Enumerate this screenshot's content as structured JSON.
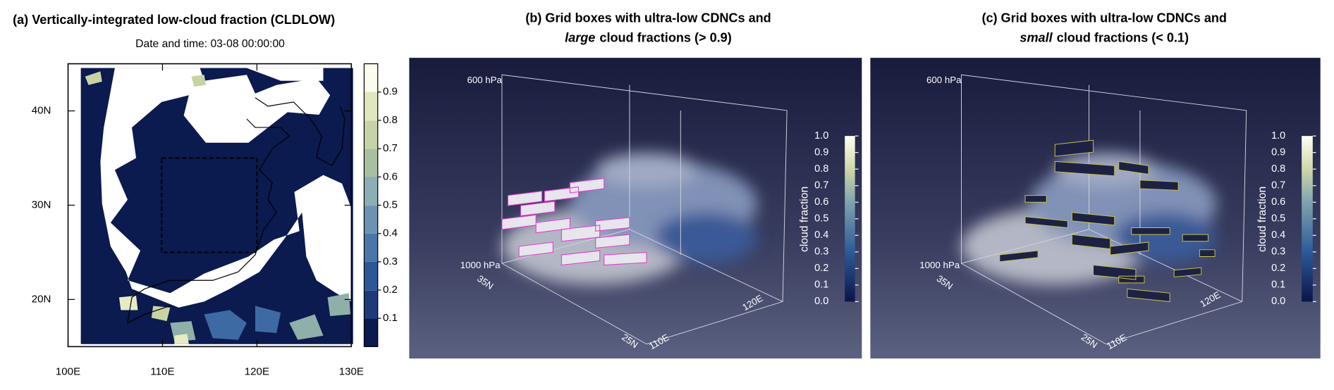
{
  "panels": [
    {
      "title": "(a) Vertically-integrated low-cloud fraction (CLDLOW)",
      "subtitle": "Date and time: 03-08 00:00:00",
      "xlim": [
        100,
        130
      ],
      "ylim": [
        15,
        45
      ],
      "xticks": [
        {
          "value": 100,
          "label": "100E"
        },
        {
          "value": 110,
          "label": "110E"
        },
        {
          "value": 120,
          "label": "120E"
        },
        {
          "value": 130,
          "label": "130E"
        }
      ],
      "yticks": [
        {
          "value": 20,
          "label": "20N"
        },
        {
          "value": 30,
          "label": "30N"
        },
        {
          "value": 40,
          "label": "40N"
        }
      ],
      "colorbar_lim": [
        0,
        1
      ],
      "colorbar_ticks": [
        0.1,
        0.2,
        0.3,
        0.4,
        0.5,
        0.6,
        0.7,
        0.8,
        0.9
      ]
    },
    {
      "title_line1": "(b) Grid boxes with ultra-low CDNCs and",
      "title_line2_italic": "large",
      "title_line2_rest": "cloud fractions (> 0.9)",
      "axis_labels": [
        "600 hPa",
        "1000 hPa",
        "35N",
        "25N",
        "110E",
        "120E"
      ],
      "colorbar_label": "cloud fraction",
      "colorbar_lim": [
        0,
        1
      ],
      "colorbar_ticks": [
        {
          "value": 0,
          "label": "0.0"
        },
        0.1,
        0.2,
        0.3,
        0.4,
        0.5,
        0.6,
        0.7,
        0.8,
        0.9,
        {
          "value": 1,
          "label": "1.0"
        }
      ]
    },
    {
      "title_line1": "(c) Grid boxes with ultra-low CDNCs and",
      "title_line2_italic": "small",
      "title_line2_rest": "cloud fractions (< 0.1)",
      "axis_labels": [
        "600 hPa",
        "1000 hPa",
        "35N",
        "25N",
        "110E",
        "120E"
      ],
      "colorbar_label": "cloud fraction",
      "colorbar_lim": [
        0,
        1
      ],
      "colorbar_ticks": [
        {
          "value": 0,
          "label": "0.0"
        },
        0.1,
        0.2,
        0.3,
        0.4,
        0.5,
        0.6,
        0.7,
        0.8,
        0.9,
        {
          "value": 1,
          "label": "1.0"
        }
      ]
    }
  ]
}
